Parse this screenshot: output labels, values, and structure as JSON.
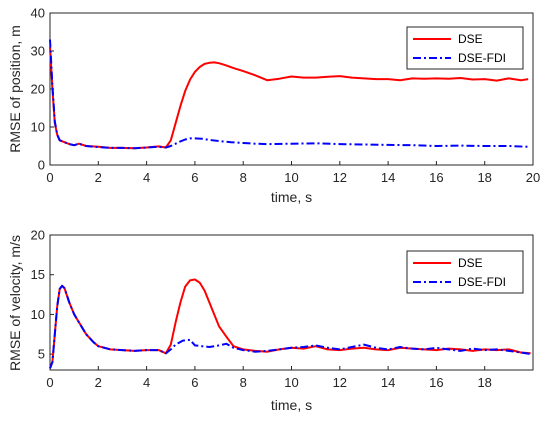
{
  "colors": {
    "dse": "#ff0000",
    "dse_fdi": "#0000ff",
    "axis": "#262626"
  },
  "chart_data": [
    {
      "type": "line",
      "xlabel": "time, s",
      "ylabel": "RMSE of position, m",
      "xlim": [
        0,
        20
      ],
      "ylim": [
        0,
        40
      ],
      "xticks": [
        0,
        2,
        4,
        6,
        8,
        10,
        12,
        14,
        16,
        18,
        20
      ],
      "yticks": [
        0,
        10,
        20,
        30,
        40
      ],
      "grid": false,
      "legend": "top-right",
      "series": [
        {
          "name": "DSE",
          "style": "solid",
          "x": [
            0,
            0.1,
            0.2,
            0.3,
            0.4,
            0.6,
            0.8,
            1.0,
            1.2,
            1.5,
            2.0,
            2.5,
            3.0,
            3.5,
            4.0,
            4.5,
            4.8,
            5.0,
            5.2,
            5.4,
            5.6,
            5.8,
            6.0,
            6.2,
            6.4,
            6.6,
            6.8,
            7.0,
            7.3,
            7.6,
            8.0,
            8.5,
            9.0,
            9.5,
            10.0,
            10.5,
            11.0,
            11.5,
            12.0,
            12.5,
            13.0,
            13.5,
            14.0,
            14.5,
            15.0,
            15.5,
            16.0,
            16.5,
            17.0,
            17.5,
            18.0,
            18.5,
            19.0,
            19.5,
            19.8
          ],
          "y": [
            31,
            20,
            11,
            8,
            6.5,
            6,
            5.5,
            5.2,
            5.6,
            5.0,
            4.8,
            4.5,
            4.5,
            4.4,
            4.6,
            4.9,
            4.6,
            6.5,
            11,
            15.5,
            19.5,
            22.5,
            24.5,
            25.8,
            26.6,
            26.9,
            27.0,
            26.8,
            26.2,
            25.5,
            24.7,
            23.6,
            22.3,
            22.7,
            23.3,
            23.0,
            23.0,
            23.2,
            23.4,
            23.0,
            22.8,
            22.6,
            22.6,
            22.3,
            22.8,
            22.7,
            22.8,
            22.7,
            22.9,
            22.5,
            22.6,
            22.2,
            22.8,
            22.3,
            22.6
          ]
        },
        {
          "name": "DSE-FDI",
          "style": "dashdot",
          "x": [
            0,
            0.1,
            0.2,
            0.3,
            0.4,
            0.6,
            0.8,
            1.0,
            1.2,
            1.5,
            2.0,
            2.5,
            3.0,
            3.5,
            4.0,
            4.5,
            4.8,
            5.0,
            5.2,
            5.4,
            5.6,
            5.8,
            6.0,
            6.3,
            6.6,
            7.0,
            7.5,
            8.0,
            8.5,
            9.0,
            10.0,
            11.0,
            12.0,
            13.0,
            14.0,
            15.0,
            16.0,
            17.0,
            18.0,
            19.0,
            19.8
          ],
          "y": [
            33,
            21,
            11.5,
            8,
            6.5,
            6,
            5.5,
            5.2,
            5.6,
            5.0,
            4.7,
            4.5,
            4.5,
            4.4,
            4.6,
            4.8,
            4.6,
            5.0,
            5.6,
            6.2,
            6.7,
            7.0,
            7.0,
            6.9,
            6.6,
            6.3,
            6.0,
            5.8,
            5.6,
            5.5,
            5.6,
            5.7,
            5.5,
            5.4,
            5.3,
            5.2,
            5.0,
            5.1,
            5.0,
            5.0,
            4.8
          ]
        }
      ]
    },
    {
      "type": "line",
      "xlabel": "time, s",
      "ylabel": "RMSE of velocity, m/s",
      "xlim": [
        0,
        20
      ],
      "ylim": [
        3,
        20
      ],
      "xticks": [
        0,
        2,
        4,
        6,
        8,
        10,
        12,
        14,
        16,
        18
      ],
      "yticks": [
        5,
        10,
        15,
        20
      ],
      "grid": false,
      "legend": "top-right",
      "series": [
        {
          "name": "DSE",
          "style": "solid",
          "x": [
            0,
            0.1,
            0.2,
            0.3,
            0.4,
            0.5,
            0.6,
            0.8,
            1.0,
            1.2,
            1.5,
            1.8,
            2.0,
            2.5,
            3.0,
            3.5,
            4.0,
            4.5,
            4.8,
            5.0,
            5.2,
            5.4,
            5.6,
            5.8,
            6.0,
            6.2,
            6.4,
            6.6,
            6.8,
            7.0,
            7.3,
            7.6,
            8.0,
            8.5,
            9.0,
            9.5,
            10.0,
            10.5,
            11.0,
            11.5,
            12.0,
            12.5,
            13.0,
            13.5,
            14.0,
            14.5,
            15.0,
            15.5,
            16.0,
            16.5,
            17.0,
            17.5,
            18.0,
            18.5,
            19.0,
            19.5,
            19.9
          ],
          "y": [
            3.2,
            4.0,
            7.5,
            11,
            13.2,
            13.6,
            13.3,
            11.5,
            10.0,
            9.0,
            7.5,
            6.5,
            6.0,
            5.6,
            5.5,
            5.4,
            5.5,
            5.5,
            5.1,
            6.2,
            9.0,
            11.5,
            13.5,
            14.3,
            14.4,
            14.0,
            13.0,
            11.5,
            10.0,
            8.5,
            7.2,
            6.0,
            5.6,
            5.4,
            5.3,
            5.6,
            5.8,
            5.7,
            6.0,
            5.6,
            5.5,
            5.7,
            5.8,
            5.6,
            5.5,
            5.8,
            5.7,
            5.6,
            5.5,
            5.7,
            5.6,
            5.4,
            5.6,
            5.5,
            5.6,
            5.2,
            5.1
          ]
        },
        {
          "name": "DSE-FDI",
          "style": "dashdot",
          "x": [
            0,
            0.1,
            0.2,
            0.3,
            0.4,
            0.5,
            0.6,
            0.8,
            1.0,
            1.2,
            1.5,
            1.8,
            2.0,
            2.5,
            3.0,
            3.5,
            4.0,
            4.5,
            4.8,
            5.0,
            5.2,
            5.5,
            5.8,
            6.0,
            6.3,
            6.6,
            7.0,
            7.3,
            7.6,
            8.0,
            8.5,
            9.0,
            9.5,
            10.0,
            10.5,
            11.0,
            11.5,
            12.0,
            12.5,
            13.0,
            13.5,
            14.0,
            14.5,
            15.0,
            15.5,
            16.0,
            16.5,
            17.0,
            17.5,
            18.0,
            18.5,
            19.0,
            19.5,
            19.9
          ],
          "y": [
            3.2,
            4.0,
            7.5,
            11,
            13.2,
            13.6,
            13.3,
            11.5,
            10.0,
            9.0,
            7.5,
            6.5,
            6.0,
            5.6,
            5.5,
            5.4,
            5.5,
            5.5,
            5.1,
            5.6,
            6.2,
            6.7,
            6.8,
            6.1,
            6.0,
            5.9,
            6.1,
            6.3,
            5.8,
            5.5,
            5.3,
            5.4,
            5.6,
            5.8,
            5.9,
            6.1,
            5.8,
            5.6,
            5.9,
            6.2,
            5.8,
            5.6,
            5.9,
            5.7,
            5.6,
            5.8,
            5.6,
            5.4,
            5.7,
            5.5,
            5.6,
            5.4,
            5.2,
            5.0
          ]
        }
      ]
    }
  ]
}
